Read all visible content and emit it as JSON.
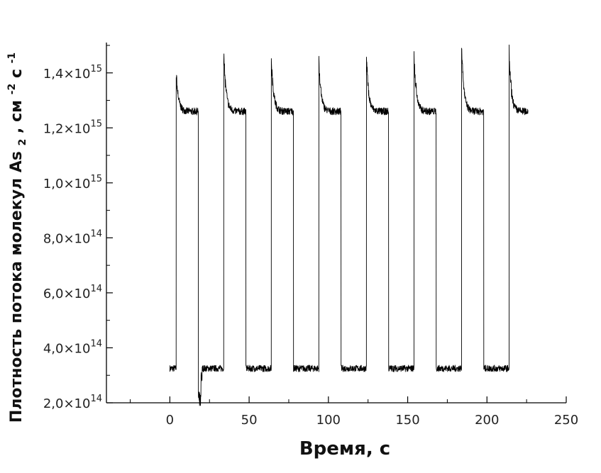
{
  "chart_data": {
    "type": "line",
    "title": "",
    "xlabel": "Время, с",
    "ylabel_main": "Плотность потока молекул",
    "ylabel_species": "As",
    "ylabel_species_sub": "2",
    "ylabel_units": ", см",
    "ylabel_units_exp": "-2",
    "ylabel_units_2": " с",
    "ylabel_units_2_exp": "-1",
    "xlim": [
      -40,
      250
    ],
    "ylim": [
      200000000000000.0,
      1500000000000000.0
    ],
    "grid": false,
    "x_ticks": [
      {
        "value": 0,
        "label": "0"
      },
      {
        "value": 50,
        "label": "50"
      },
      {
        "value": 100,
        "label": "100"
      },
      {
        "value": 150,
        "label": "150"
      },
      {
        "value": 200,
        "label": "200"
      },
      {
        "value": 250,
        "label": "250"
      }
    ],
    "y_ticks": [
      {
        "value": 200000000000000.0,
        "mantissa": "2,0×10",
        "exp": "14"
      },
      {
        "value": 400000000000000.0,
        "mantissa": "4,0×10",
        "exp": "14"
      },
      {
        "value": 600000000000000.0,
        "mantissa": "6,0×10",
        "exp": "14"
      },
      {
        "value": 800000000000000.0,
        "mantissa": "8,0×10",
        "exp": "14"
      },
      {
        "value": 1000000000000000.0,
        "mantissa": "1,0×10",
        "exp": "15"
      },
      {
        "value": 1200000000000000.0,
        "mantissa": "1,2×10",
        "exp": "15"
      },
      {
        "value": 1400000000000000.0,
        "mantissa": "1,4×10",
        "exp": "15"
      }
    ],
    "series": [
      {
        "low_level": 325000000000000.0,
        "high_level": 1260000000000000.0,
        "noise_low": 12000000000000.0,
        "noise_high": 13000000000000.0,
        "segments": [
          {
            "start": 0,
            "end": 4,
            "state": "low"
          },
          {
            "start": 4,
            "end": 18,
            "state": "high",
            "peak": 1400000000000000.0
          },
          {
            "start": 18,
            "end": 34,
            "state": "low",
            "dip": 200000000000000.0
          },
          {
            "start": 34,
            "end": 48,
            "state": "high",
            "peak": 1480000000000000.0
          },
          {
            "start": 48,
            "end": 64,
            "state": "low"
          },
          {
            "start": 64,
            "end": 78,
            "state": "high",
            "peak": 1460000000000000.0
          },
          {
            "start": 78,
            "end": 94,
            "state": "low"
          },
          {
            "start": 94,
            "end": 108,
            "state": "high",
            "peak": 1440000000000000.0
          },
          {
            "start": 108,
            "end": 124,
            "state": "low"
          },
          {
            "start": 124,
            "end": 138,
            "state": "high",
            "peak": 1450000000000000.0
          },
          {
            "start": 138,
            "end": 154,
            "state": "low"
          },
          {
            "start": 154,
            "end": 168,
            "state": "high",
            "peak": 1470000000000000.0
          },
          {
            "start": 168,
            "end": 184,
            "state": "low"
          },
          {
            "start": 184,
            "end": 198,
            "state": "high",
            "peak": 1500000000000000.0
          },
          {
            "start": 198,
            "end": 214,
            "state": "low"
          },
          {
            "start": 214,
            "end": 226,
            "state": "high",
            "peak": 1470000000000000.0
          }
        ]
      }
    ]
  }
}
